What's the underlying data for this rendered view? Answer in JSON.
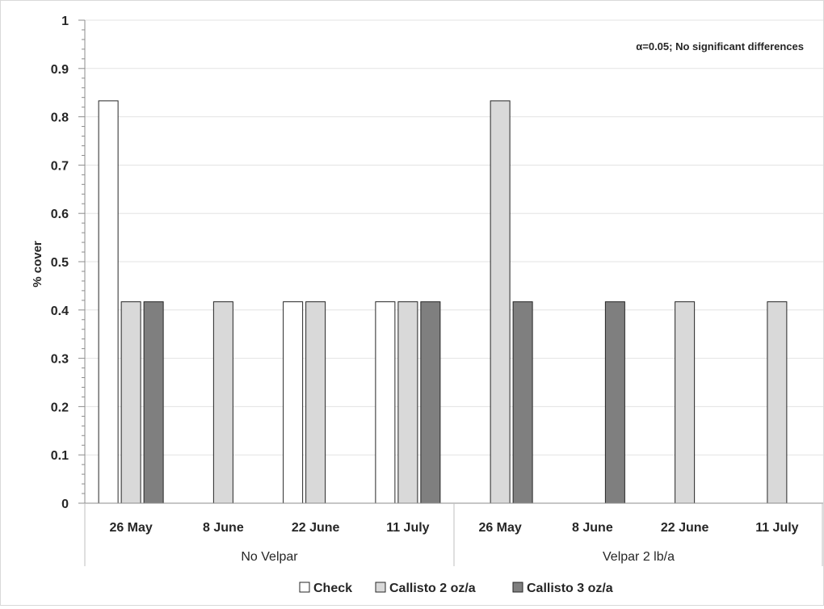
{
  "chart_data": {
    "type": "bar",
    "ylabel": "% cover",
    "ylim": [
      0,
      1
    ],
    "yticks": [
      "0",
      "0.1",
      "0.2",
      "0.3",
      "0.4",
      "0.5",
      "0.6",
      "0.7",
      "0.8",
      "0.9",
      "1"
    ],
    "grid": true,
    "legend_position": "bottom",
    "annotation": "α=0.05; No significant differences",
    "groups": [
      {
        "label": "No Velpar",
        "categories": [
          "26 May",
          "8 June",
          "22 June",
          "11 July"
        ]
      },
      {
        "label": "Velpar 2 lb/a",
        "categories": [
          "26 May",
          "8 June",
          "22 June",
          "11 July"
        ]
      }
    ],
    "series": [
      {
        "name": "Check",
        "color": "#ffffff",
        "values": [
          0.833,
          0,
          0.417,
          0.417,
          0,
          0,
          0,
          0
        ]
      },
      {
        "name": "Callisto 2 oz/a",
        "color": "#d9d9d9",
        "values": [
          0.417,
          0.417,
          0.417,
          0.417,
          0.833,
          0,
          0.417,
          0.417
        ]
      },
      {
        "name": "Callisto 3 oz/a",
        "color": "#7f7f7f",
        "values": [
          0.417,
          0,
          0,
          0.417,
          0.417,
          0.417,
          0,
          0
        ]
      }
    ]
  }
}
